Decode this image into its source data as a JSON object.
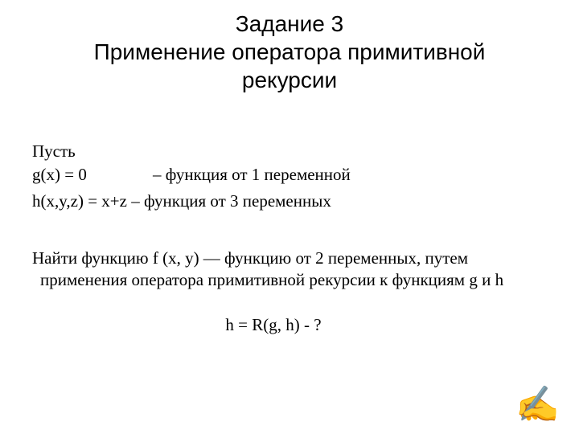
{
  "title": {
    "line1": "Задание 3",
    "line2": "Применение оператора примитивной",
    "line3": "рекурсии"
  },
  "body": {
    "let": "Пусть",
    "g_def_left": "g(x) = 0",
    "g_def_right": "– функция от 1 переменной",
    "h_def": "h(x,y,z) = x+z – функция от 3 переменных",
    "find": "Найти функцию f (x, y) — функцию от 2 переменных, путем применения оператора примитивной рекурсии к функциям  g и h",
    "formula": "h = R(g, h) - ?"
  },
  "icon": {
    "writing_hand": "✍"
  },
  "style": {
    "background": "#ffffff",
    "text_color": "#000000",
    "title_font": "Arial",
    "body_font": "Times New Roman",
    "title_fontsize": 28,
    "body_fontsize": 21
  }
}
